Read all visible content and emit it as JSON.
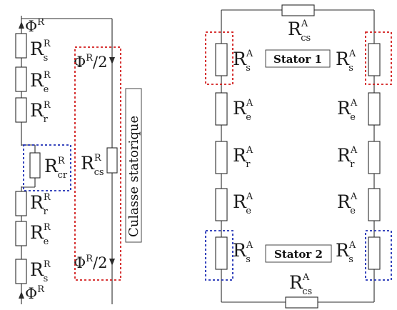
{
  "left_circuit": {
    "flux_top": {
      "base": "Φ",
      "sup": "R"
    },
    "flux_bottom": {
      "base": "Φ",
      "sup": "R"
    },
    "flux_half_top": {
      "base": "Φ",
      "sup": "R",
      "tail": "/2"
    },
    "flux_half_bottom": {
      "base": "Φ",
      "sup": "R",
      "tail": "/2"
    },
    "resistors": [
      {
        "base": "R",
        "sub": "s",
        "sup": "R"
      },
      {
        "base": "R",
        "sub": "e",
        "sup": "R"
      },
      {
        "base": "R",
        "sub": "r",
        "sup": "R"
      },
      {
        "base": "R",
        "sub": "cr",
        "sup": "R"
      },
      {
        "base": "R",
        "sub": "r",
        "sup": "R"
      },
      {
        "base": "R",
        "sub": "e",
        "sup": "R"
      },
      {
        "base": "R",
        "sub": "s",
        "sup": "R"
      }
    ],
    "yoke_resistor": {
      "base": "R",
      "sub": "cs",
      "sup": "R"
    },
    "yoke_label": "Culasse statorique"
  },
  "right_circuit": {
    "top_resistor": {
      "base": "R",
      "sub": "cs",
      "sup": "A"
    },
    "bottom_resistor": {
      "base": "R",
      "sub": "cs",
      "sup": "A"
    },
    "left_column": [
      {
        "base": "R",
        "sub": "s",
        "sup": "A"
      },
      {
        "base": "R",
        "sub": "e",
        "sup": "A"
      },
      {
        "base": "R",
        "sub": "r",
        "sup": "A"
      },
      {
        "base": "R",
        "sub": "e",
        "sup": "A"
      },
      {
        "base": "R",
        "sub": "s",
        "sup": "A"
      }
    ],
    "right_column": [
      {
        "base": "R",
        "sub": "s",
        "sup": "A"
      },
      {
        "base": "R",
        "sub": "e",
        "sup": "A"
      },
      {
        "base": "R",
        "sub": "r",
        "sup": "A"
      },
      {
        "base": "R",
        "sub": "e",
        "sup": "A"
      },
      {
        "base": "R",
        "sub": "s",
        "sup": "A"
      }
    ],
    "stator1_label": "Stator 1",
    "stator2_label": "Stator 2"
  },
  "colors": {
    "wire": "#2b2b2b",
    "highlight_red": "#d21c1c",
    "highlight_blue": "#1f2fb5"
  }
}
